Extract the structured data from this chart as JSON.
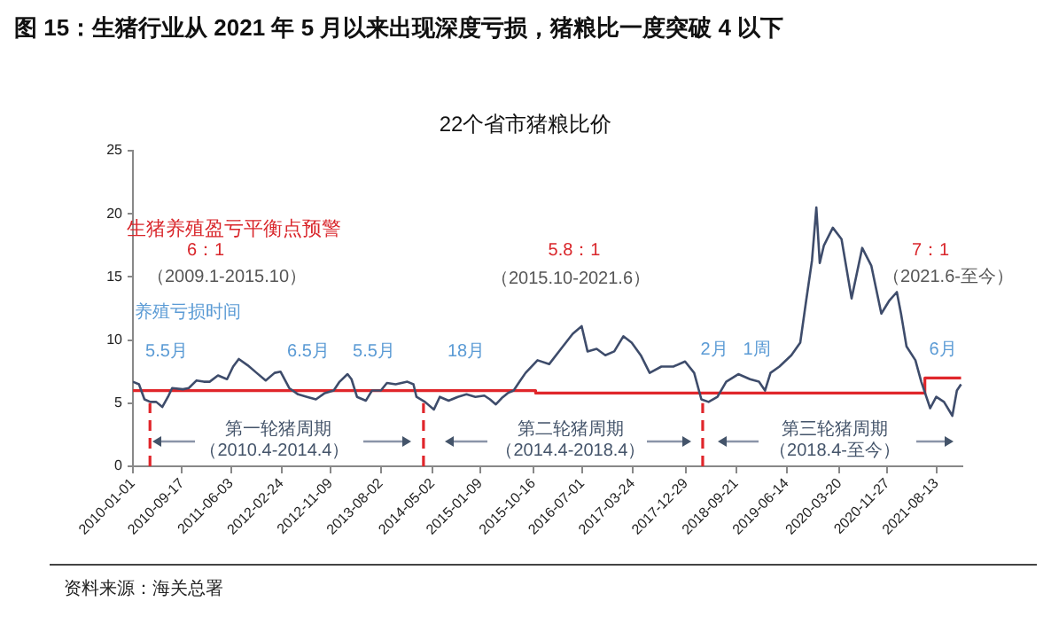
{
  "chart_data": {
    "type": "line",
    "title": "图 15：生猪行业从 2021 年 5 月以来出现深度亏损，猪粮比一度突破 4 以下",
    "subtitle": "22个省市猪粮比价",
    "xlim": [
      "2010-01-01",
      "2021-12-28"
    ],
    "xticks": [
      "2010-01-01",
      "2010-09-17",
      "2011-06-03",
      "2012-02-24",
      "2012-11-09",
      "2013-08-02",
      "2014-05-02",
      "2015-01-09",
      "2015-10-16",
      "2016-07-01",
      "2017-03-24",
      "2017-12-29",
      "2018-09-21",
      "2019-06-14",
      "2020-03-20",
      "2020-11-27",
      "2021-08-13"
    ],
    "ylim": [
      0,
      25
    ],
    "yticks": [
      0,
      5,
      10,
      15,
      20,
      25
    ],
    "grid": false,
    "series": [
      {
        "type": "line",
        "color": "#3e4c6b",
        "x": [
          "2010-01-01",
          "2010-02-02",
          "2010-03-03",
          "2010-04-03",
          "2010-05-04",
          "2010-06-05",
          "2010-07-05",
          "2010-07-27",
          "2010-09-22",
          "2010-10-23",
          "2010-12-03",
          "2011-01-10",
          "2011-02-10",
          "2011-03-26",
          "2011-05-13",
          "2011-06-14",
          "2011-07-14",
          "2011-08-30",
          "2011-10-16",
          "2011-12-03",
          "2012-01-19",
          "2012-02-19",
          "2012-04-05",
          "2012-05-22",
          "2012-07-08",
          "2012-08-24",
          "2012-10-10",
          "2012-11-26",
          "2012-12-27",
          "2013-02-07",
          "2013-02-28",
          "2013-03-29",
          "2013-05-15",
          "2013-06-16",
          "2013-08-02",
          "2013-09-03",
          "2013-10-19",
          "2013-12-20",
          "2014-01-21",
          "2014-02-06",
          "2014-03-23",
          "2014-05-09",
          "2014-06-09",
          "2014-07-26",
          "2014-09-12",
          "2014-10-28",
          "2014-12-14",
          "2015-01-30",
          "2015-03-01",
          "2015-04-01",
          "2015-05-02",
          "2015-06-03",
          "2015-07-04",
          "2015-08-04",
          "2015-09-05",
          "2015-11-07",
          "2016-01-08",
          "2016-03-10",
          "2016-05-11",
          "2016-06-27",
          "2016-07-28",
          "2016-09-14",
          "2016-10-30",
          "2016-12-16",
          "2017-02-02",
          "2017-03-18",
          "2017-05-05",
          "2017-06-21",
          "2017-08-22",
          "2017-10-24",
          "2017-12-25",
          "2018-02-11",
          "2018-03-21",
          "2018-04-28",
          "2018-06-14",
          "2018-07-30",
          "2018-10-02",
          "2018-12-03",
          "2019-01-19",
          "2019-02-20",
          "2019-03-21",
          "2019-05-07",
          "2019-07-09",
          "2019-08-25",
          "2019-09-25",
          "2019-10-26",
          "2019-11-18",
          "2019-12-06",
          "2019-12-28",
          "2020-02-13",
          "2020-03-30",
          "2020-05-22",
          "2020-07-17",
          "2020-09-03",
          "2020-10-26",
          "2020-12-06",
          "2021-01-16",
          "2021-02-07",
          "2021-03-08",
          "2021-04-24",
          "2021-05-25",
          "2021-07-11",
          "2021-08-12",
          "2021-09-22",
          "2021-11-05",
          "2021-11-29",
          "2021-12-21"
        ],
        "values": [
          6.7,
          6.5,
          5.3,
          5.1,
          5.1,
          4.7,
          5.5,
          6.2,
          6.1,
          6.2,
          6.8,
          6.7,
          6.7,
          7.2,
          6.9,
          7.9,
          8.5,
          8.0,
          7.4,
          6.8,
          7.4,
          7.5,
          6.2,
          5.7,
          5.5,
          5.3,
          5.8,
          6.0,
          6.7,
          7.3,
          6.9,
          5.5,
          5.2,
          6.0,
          6.0,
          6.6,
          6.5,
          6.7,
          6.5,
          5.5,
          5.1,
          4.5,
          5.5,
          5.2,
          5.5,
          5.7,
          5.5,
          5.6,
          5.3,
          4.9,
          5.4,
          5.8,
          6.0,
          6.7,
          7.4,
          8.4,
          8.1,
          9.3,
          10.5,
          11.1,
          9.1,
          9.3,
          8.8,
          9.1,
          10.3,
          9.8,
          8.8,
          7.4,
          7.9,
          7.9,
          8.3,
          7.4,
          5.3,
          5.1,
          5.5,
          6.7,
          7.3,
          6.9,
          6.7,
          6.0,
          7.4,
          7.9,
          8.8,
          9.8,
          13.1,
          16.3,
          20.5,
          16.1,
          17.5,
          18.9,
          18.0,
          13.3,
          17.3,
          15.9,
          12.1,
          13.1,
          13.8,
          12.1,
          9.5,
          8.4,
          6.7,
          4.6,
          5.5,
          5.1,
          4.0,
          6.0,
          6.5
        ]
      },
      {
        "type": "step",
        "color": "#e0262b",
        "x": [
          "2010-01-01",
          "2015-10-28",
          "2021-06-13",
          "2021-12-21"
        ],
        "values": [
          6,
          5.8,
          7,
          7
        ]
      }
    ],
    "ref_lines": [
      {
        "axis": "x",
        "value": "2010-04-01",
        "color": "#e0262b",
        "line_style": "dashed"
      },
      {
        "axis": "x",
        "value": "2014-03-15",
        "color": "#e0262b",
        "line_style": "dashed"
      },
      {
        "axis": "x",
        "value": "2018-03-28",
        "color": "#e0262b",
        "line_style": "dashed"
      }
    ],
    "annotations": [
      "生猪养殖盈亏平衡点预警",
      "6：1",
      "（2009.1-2015.10）",
      "5.8：1",
      "（2015.10-2021.6）",
      "7：1",
      "（2021.6-至今）",
      "养殖亏损时间",
      "5.5月",
      "6.5月",
      "5.5月",
      "18月",
      "2月",
      "1周",
      "6月",
      "第一轮猪周期",
      "（2010.4-2014.4）",
      "第二轮猪周期",
      "（2014.4-2018.4）",
      "第三轮猪周期",
      "（2018.4-至今）",
      "资料来源：海关总署"
    ]
  }
}
